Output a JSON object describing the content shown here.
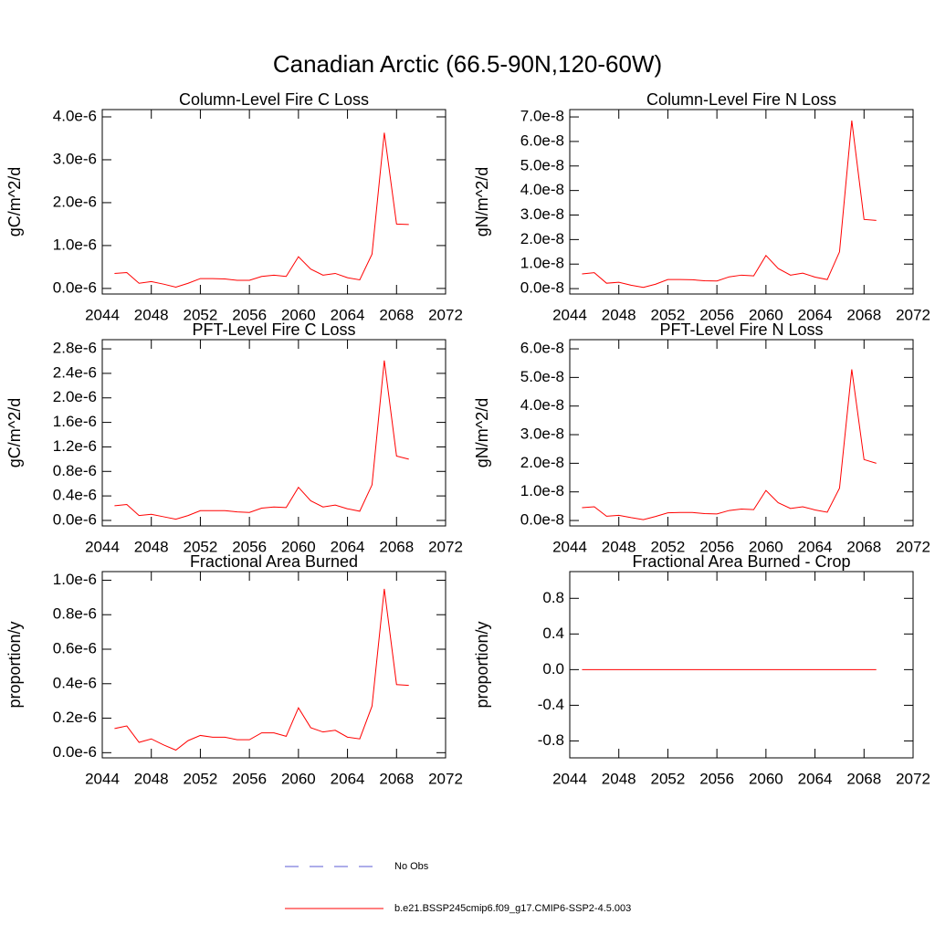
{
  "title": "Canadian Arctic (66.5-90N,120-60W)",
  "legend": [
    {
      "name": "No Obs",
      "color": "#5b5bd6",
      "style": "dashed"
    },
    {
      "name": "b.e21.BSSP245cmip6.f09_g17.CMIP6-SSP2-4.5.003",
      "color": "#ff0000",
      "style": "solid"
    }
  ],
  "chart_data": [
    {
      "type": "line",
      "title": "Column-Level Fire C Loss",
      "ylabel": "gC/m^2/d",
      "color": "#ff0000",
      "x": [
        2045,
        2046,
        2047,
        2048,
        2049,
        2050,
        2051,
        2052,
        2053,
        2054,
        2055,
        2056,
        2057,
        2058,
        2059,
        2060,
        2061,
        2062,
        2063,
        2064,
        2065,
        2066,
        2067,
        2068,
        2069
      ],
      "values": [
        3.5e-07,
        3.7e-07,
        1.2e-07,
        1.6e-07,
        1e-07,
        3e-08,
        1.2e-07,
        2.3e-07,
        2.3e-07,
        2.2e-07,
        1.9e-07,
        1.9e-07,
        2.8e-07,
        3.1e-07,
        2.8e-07,
        7.4e-07,
        4.5e-07,
        3.1e-07,
        3.5e-07,
        2.5e-07,
        2e-07,
        8e-07,
        3.63e-06,
        1.5e-06,
        1.49e-06
      ],
      "xlim": [
        2044,
        2072
      ],
      "xticks": [
        2044,
        2048,
        2052,
        2056,
        2060,
        2064,
        2068,
        2072
      ],
      "ylim": [
        -1.3e-07,
        4.17e-06
      ],
      "yticks": [
        {
          "value": 0,
          "label": "0.0e-6"
        },
        {
          "value": 1e-06,
          "label": "1.0e-6"
        },
        {
          "value": 2e-06,
          "label": "2.0e-6"
        },
        {
          "value": 3e-06,
          "label": "3.0e-6"
        },
        {
          "value": 4e-06,
          "label": "4.0e-6"
        }
      ]
    },
    {
      "type": "line",
      "title": "Column-Level Fire N Loss",
      "ylabel": "gN/m^2/d",
      "color": "#ff0000",
      "x": [
        2045,
        2046,
        2047,
        2048,
        2049,
        2050,
        2051,
        2052,
        2053,
        2054,
        2055,
        2056,
        2057,
        2058,
        2059,
        2060,
        2061,
        2062,
        2063,
        2064,
        2065,
        2066,
        2067,
        2068,
        2069
      ],
      "values": [
        6e-09,
        6.5e-09,
        2.2e-09,
        2.6e-09,
        1.4e-09,
        5e-10,
        1.8e-09,
        3.7e-09,
        3.7e-09,
        3.6e-09,
        3.2e-09,
        3.1e-09,
        4.8e-09,
        5.5e-09,
        5.2e-09,
        1.35e-08,
        8.2e-09,
        5.5e-09,
        6.3e-09,
        4.7e-09,
        3.7e-09,
        1.5e-08,
        6.85e-08,
        2.82e-08,
        2.78e-08
      ],
      "xlim": [
        2044,
        2072
      ],
      "xticks": [
        2044,
        2048,
        2052,
        2056,
        2060,
        2064,
        2068,
        2072
      ],
      "ylim": [
        -2.2e-09,
        7.3e-08
      ],
      "yticks": [
        {
          "value": 0,
          "label": "0.0e-8"
        },
        {
          "value": 1e-08,
          "label": "1.0e-8"
        },
        {
          "value": 2e-08,
          "label": "2.0e-8"
        },
        {
          "value": 3e-08,
          "label": "3.0e-8"
        },
        {
          "value": 4e-08,
          "label": "4.0e-8"
        },
        {
          "value": 5e-08,
          "label": "5.0e-8"
        },
        {
          "value": 6e-08,
          "label": "6.0e-8"
        },
        {
          "value": 7e-08,
          "label": "7.0e-8"
        }
      ]
    },
    {
      "type": "line",
      "title": "PFT-Level Fire C Loss",
      "ylabel": "gC/m^2/d",
      "color": "#ff0000",
      "x": [
        2045,
        2046,
        2047,
        2048,
        2049,
        2050,
        2051,
        2052,
        2053,
        2054,
        2055,
        2056,
        2057,
        2058,
        2059,
        2060,
        2061,
        2062,
        2063,
        2064,
        2065,
        2066,
        2067,
        2068,
        2069
      ],
      "values": [
        2.4e-07,
        2.6e-07,
        8e-08,
        1e-07,
        6e-08,
        2e-08,
        8e-08,
        1.6e-07,
        1.6e-07,
        1.6e-07,
        1.4e-07,
        1.3e-07,
        2e-07,
        2.2e-07,
        2.1e-07,
        5.4e-07,
        3.2e-07,
        2.2e-07,
        2.5e-07,
        1.9e-07,
        1.5e-07,
        5.8e-07,
        2.61e-06,
        1.05e-06,
        1e-06
      ],
      "xlim": [
        2044,
        2072
      ],
      "xticks": [
        2044,
        2048,
        2052,
        2056,
        2060,
        2064,
        2068,
        2072
      ],
      "ylim": [
        -9e-08,
        2.95e-06
      ],
      "yticks": [
        {
          "value": 0,
          "label": "0.0e-6"
        },
        {
          "value": 4e-07,
          "label": "0.4e-6"
        },
        {
          "value": 8e-07,
          "label": "0.8e-6"
        },
        {
          "value": 1.2e-06,
          "label": "1.2e-6"
        },
        {
          "value": 1.6e-06,
          "label": "1.6e-6"
        },
        {
          "value": 2e-06,
          "label": "2.0e-6"
        },
        {
          "value": 2.4e-06,
          "label": "2.4e-6"
        },
        {
          "value": 2.8e-06,
          "label": "2.8e-6"
        }
      ]
    },
    {
      "type": "line",
      "title": "PFT-Level Fire N Loss",
      "ylabel": "gN/m^2/d",
      "color": "#ff0000",
      "x": [
        2045,
        2046,
        2047,
        2048,
        2049,
        2050,
        2051,
        2052,
        2053,
        2054,
        2055,
        2056,
        2057,
        2058,
        2059,
        2060,
        2061,
        2062,
        2063,
        2064,
        2065,
        2066,
        2067,
        2068,
        2069
      ],
      "values": [
        4.5e-09,
        4.8e-09,
        1.5e-09,
        1.8e-09,
        1e-09,
        3e-10,
        1.4e-09,
        2.7e-09,
        2.8e-09,
        2.8e-09,
        2.4e-09,
        2.3e-09,
        3.5e-09,
        4e-09,
        3.8e-09,
        1.05e-08,
        6.2e-09,
        4.2e-09,
        4.8e-09,
        3.7e-09,
        2.9e-09,
        1.13e-08,
        5.28e-08,
        2.13e-08,
        2e-08
      ],
      "xlim": [
        2044,
        2072
      ],
      "xticks": [
        2044,
        2048,
        2052,
        2056,
        2060,
        2064,
        2068,
        2072
      ],
      "ylim": [
        -1.9e-09,
        6.32e-08
      ],
      "yticks": [
        {
          "value": 0,
          "label": "0.0e-8"
        },
        {
          "value": 1e-08,
          "label": "1.0e-8"
        },
        {
          "value": 2e-08,
          "label": "2.0e-8"
        },
        {
          "value": 3e-08,
          "label": "3.0e-8"
        },
        {
          "value": 4e-08,
          "label": "4.0e-8"
        },
        {
          "value": 5e-08,
          "label": "5.0e-8"
        },
        {
          "value": 6e-08,
          "label": "6.0e-8"
        }
      ]
    },
    {
      "type": "line",
      "title": "Fractional Area Burned",
      "ylabel": "proportion/y",
      "color": "#ff0000",
      "x": [
        2045,
        2046,
        2047,
        2048,
        2049,
        2050,
        2051,
        2052,
        2053,
        2054,
        2055,
        2056,
        2057,
        2058,
        2059,
        2060,
        2061,
        2062,
        2063,
        2064,
        2065,
        2066,
        2067,
        2068,
        2069
      ],
      "values": [
        1.4e-07,
        1.55e-07,
        6e-08,
        8e-08,
        4.5e-08,
        1.5e-08,
        7e-08,
        1e-07,
        9e-08,
        9e-08,
        7.5e-08,
        7.5e-08,
        1.15e-07,
        1.15e-07,
        9.5e-08,
        2.6e-07,
        1.45e-07,
        1.2e-07,
        1.3e-07,
        9e-08,
        8e-08,
        2.7e-07,
        9.5e-07,
        3.95e-07,
        3.9e-07
      ],
      "xlim": [
        2044,
        2072
      ],
      "xticks": [
        2044,
        2048,
        2052,
        2056,
        2060,
        2064,
        2068,
        2072
      ],
      "ylim": [
        -3e-08,
        1.05e-06
      ],
      "yticks": [
        {
          "value": 0,
          "label": "0.0e-6"
        },
        {
          "value": 2e-07,
          "label": "0.2e-6"
        },
        {
          "value": 4e-07,
          "label": "0.4e-6"
        },
        {
          "value": 6e-07,
          "label": "0.6e-6"
        },
        {
          "value": 8e-07,
          "label": "0.8e-6"
        },
        {
          "value": 1e-06,
          "label": "1.0e-6"
        }
      ]
    },
    {
      "type": "line",
      "title": "Fractional Area Burned - Crop",
      "ylabel": "proportion/y",
      "color": "#ff0000",
      "x": [
        2045,
        2046,
        2047,
        2048,
        2049,
        2050,
        2051,
        2052,
        2053,
        2054,
        2055,
        2056,
        2057,
        2058,
        2059,
        2060,
        2061,
        2062,
        2063,
        2064,
        2065,
        2066,
        2067,
        2068,
        2069
      ],
      "values": [
        0,
        0,
        0,
        0,
        0,
        0,
        0,
        0,
        0,
        0,
        0,
        0,
        0,
        0,
        0,
        0,
        0,
        0,
        0,
        0,
        0,
        0,
        0,
        0,
        0
      ],
      "xlim": [
        2044,
        2072
      ],
      "xticks": [
        2044,
        2048,
        2052,
        2056,
        2060,
        2064,
        2068,
        2072
      ],
      "ylim": [
        -0.99,
        1.1
      ],
      "yticks": [
        -0.8,
        -0.4,
        {
          "value": 0,
          "label": "0.0"
        },
        0.4,
        0.8
      ]
    }
  ]
}
